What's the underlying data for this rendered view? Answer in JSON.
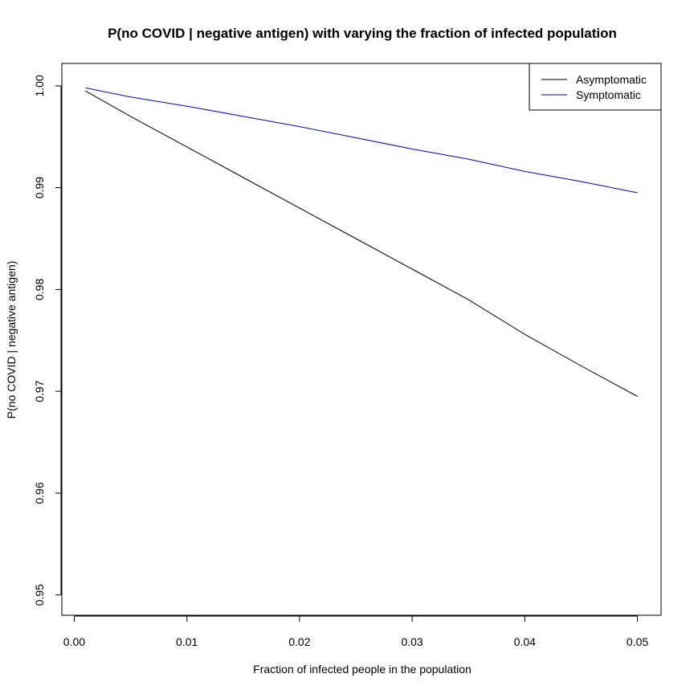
{
  "chart_data": {
    "type": "line",
    "title": "P(no COVID | negative antigen) with varying the fraction of infected population",
    "xlabel": "Fraction of infected people in the population",
    "ylabel": "P(no COVID | negative antigen)",
    "xlim": [
      -0.0011,
      0.0521
    ],
    "ylim": [
      0.948,
      1.0022
    ],
    "xticks": [
      0.0,
      0.01,
      0.02,
      0.03,
      0.04,
      0.05
    ],
    "xtick_labels": [
      "0.00",
      "0.01",
      "0.02",
      "0.03",
      "0.04",
      "0.05"
    ],
    "yticks": [
      0.95,
      0.96,
      0.97,
      0.98,
      0.99,
      1.0
    ],
    "ytick_labels": [
      "0.95",
      "0.96",
      "0.97",
      "0.98",
      "0.99",
      "1.00"
    ],
    "grid": false,
    "legend": "top-right",
    "series": [
      {
        "name": "Asymptomatic",
        "color": "#000000",
        "x": [
          0.001,
          0.005,
          0.01,
          0.015,
          0.02,
          0.025,
          0.03,
          0.035,
          0.04,
          0.045,
          0.05
        ],
        "y": [
          0.9995,
          0.997,
          0.994,
          0.991,
          0.988,
          0.985,
          0.982,
          0.979,
          0.9756,
          0.9725,
          0.9695
        ]
      },
      {
        "name": "Symptomatic",
        "color": "#0000cd",
        "x": [
          0.001,
          0.005,
          0.01,
          0.015,
          0.02,
          0.025,
          0.03,
          0.035,
          0.04,
          0.045,
          0.05
        ],
        "y": [
          0.9998,
          0.9989,
          0.998,
          0.997,
          0.996,
          0.9949,
          0.9938,
          0.9928,
          0.9916,
          0.9906,
          0.9895
        ]
      }
    ]
  }
}
